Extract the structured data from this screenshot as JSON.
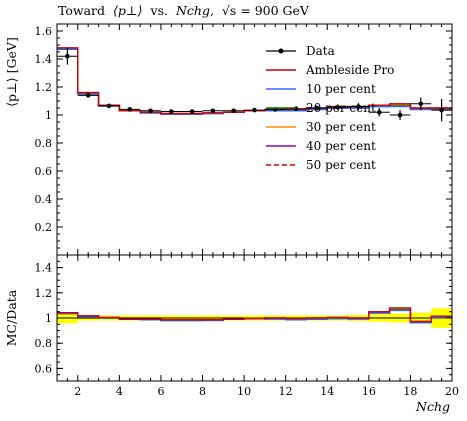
{
  "chart_data": {
    "type": "line",
    "title_parts": {
      "prefix": "Toward",
      "observable": "⟨p⊥⟩",
      "vs": "vs.",
      "xvar": "Nchg,",
      "energy": "√s = 900 GeV"
    },
    "xlabel": "Nchg",
    "ylabel_main": "⟨p⊥⟩ [GeV]",
    "ylabel_ratio": "MC/Data",
    "xlim": [
      1,
      20
    ],
    "ylim_main": [
      0,
      1.65
    ],
    "ylim_ratio": [
      0.5,
      1.5
    ],
    "x_ticks": [
      "2",
      "4",
      "6",
      "8",
      "10",
      "12",
      "14",
      "16",
      "18",
      "20"
    ],
    "y_ticks_main": [
      "0.2",
      "0.4",
      "0.6",
      "0.8",
      "1",
      "1.2",
      "1.4",
      "1.6"
    ],
    "y_ticks_ratio": [
      "0.6",
      "0.8",
      "1",
      "1.2",
      "1.4"
    ],
    "bin_edges": [
      1,
      2,
      3,
      4,
      5,
      6,
      7,
      8,
      9,
      10,
      11,
      12,
      13,
      14,
      15,
      16,
      17,
      18,
      19,
      20
    ],
    "data": {
      "name": "Data",
      "x": [
        1.5,
        2.5,
        3.5,
        4.5,
        5.5,
        6.5,
        7.5,
        8.5,
        9.5,
        10.5,
        11.5,
        12.5,
        13.5,
        14.5,
        15.5,
        16.5,
        17.5,
        18.5,
        19.5
      ],
      "y": [
        1.42,
        1.14,
        1.065,
        1.04,
        1.03,
        1.025,
        1.025,
        1.03,
        1.03,
        1.035,
        1.04,
        1.045,
        1.05,
        1.055,
        1.06,
        1.02,
        1.0,
        1.08,
        1.035
      ],
      "err": [
        0.06,
        0.015,
        0.01,
        0.008,
        0.008,
        0.008,
        0.008,
        0.008,
        0.01,
        0.01,
        0.012,
        0.015,
        0.018,
        0.02,
        0.025,
        0.03,
        0.035,
        0.045,
        0.08
      ]
    },
    "series": [
      {
        "name": "Ambleside Pro",
        "color": "#cc0000",
        "dash": "solid",
        "values": [
          1.48,
          1.16,
          1.07,
          1.03,
          1.02,
          1.01,
          1.01,
          1.015,
          1.02,
          1.03,
          1.04,
          1.04,
          1.05,
          1.06,
          1.06,
          1.07,
          1.08,
          1.05,
          1.05
        ]
      },
      {
        "name": "10 per cent",
        "color": "#3366ff",
        "dash": "solid",
        "values": [
          1.47,
          1.15,
          1.065,
          1.03,
          1.015,
          1.005,
          1.005,
          1.01,
          1.02,
          1.03,
          1.03,
          1.03,
          1.04,
          1.05,
          1.05,
          1.06,
          1.06,
          1.04,
          1.04
        ]
      },
      {
        "name": "20 per cent",
        "color": "#007700",
        "dash": "solid",
        "values": [
          1.47,
          1.15,
          1.065,
          1.03,
          1.015,
          1.005,
          1.005,
          1.01,
          1.02,
          1.03,
          1.035,
          1.035,
          1.04,
          1.05,
          1.055,
          1.06,
          1.065,
          1.04,
          1.04
        ]
      },
      {
        "name": "30 per cent",
        "color": "#ff8800",
        "dash": "solid",
        "values": [
          1.47,
          1.155,
          1.065,
          1.03,
          1.015,
          1.01,
          1.01,
          1.012,
          1.02,
          1.03,
          1.035,
          1.035,
          1.045,
          1.05,
          1.055,
          1.065,
          1.07,
          1.045,
          1.045
        ]
      },
      {
        "name": "40 per cent",
        "color": "#9900cc",
        "dash": "solid",
        "values": [
          1.475,
          1.155,
          1.068,
          1.03,
          1.018,
          1.01,
          1.01,
          1.015,
          1.02,
          1.03,
          1.038,
          1.038,
          1.045,
          1.055,
          1.058,
          1.068,
          1.075,
          1.048,
          1.048
        ]
      },
      {
        "name": "50 per cent",
        "color": "#cc0000",
        "dash": "dashed",
        "values": [
          1.475,
          1.16,
          1.068,
          1.03,
          1.018,
          1.01,
          1.01,
          1.015,
          1.02,
          1.03,
          1.04,
          1.04,
          1.05,
          1.058,
          1.06,
          1.07,
          1.078,
          1.05,
          1.05
        ]
      }
    ],
    "legend_position": "top-right"
  }
}
